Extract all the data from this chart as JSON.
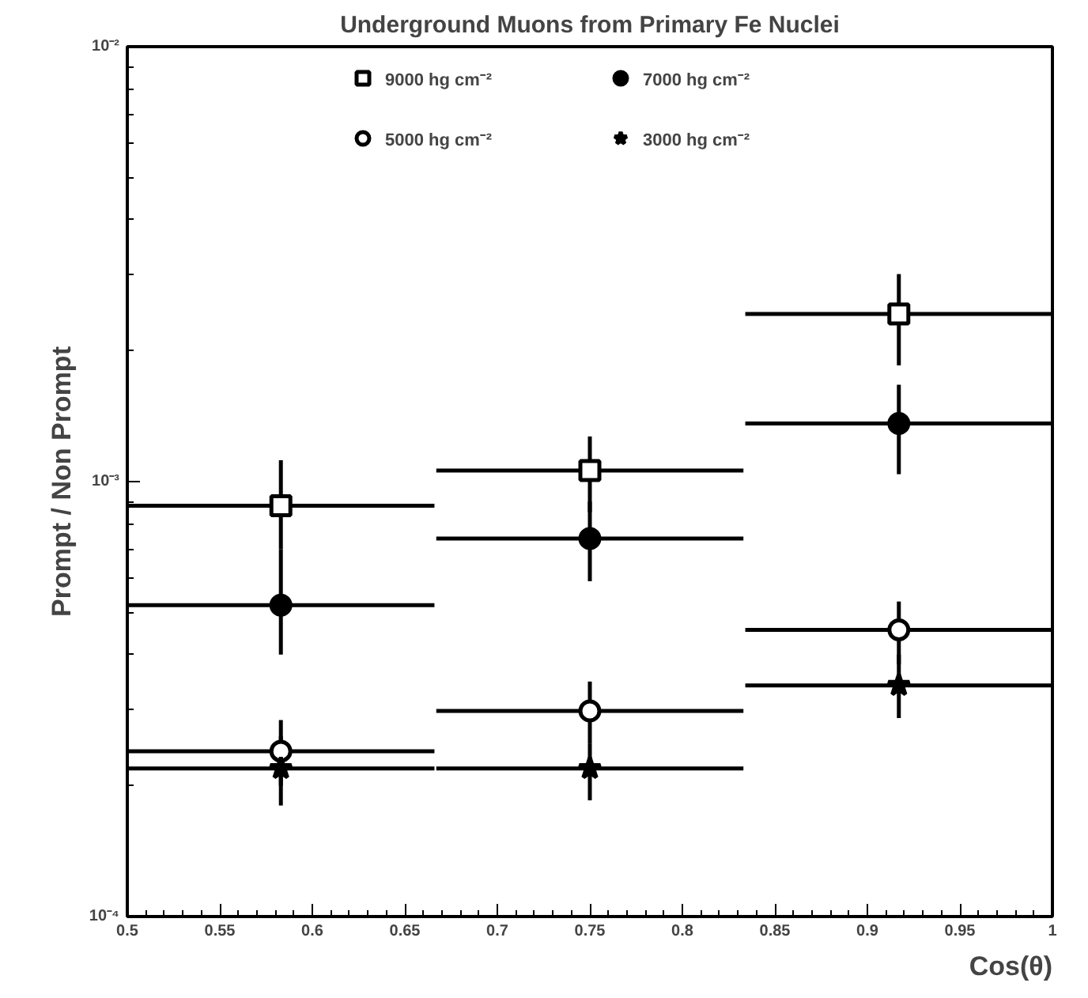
{
  "chart_data": {
    "type": "scatter",
    "title": "Underground Muons from Primary Fe Nuclei",
    "xlabel": "Cos(θ)",
    "ylabel": "Prompt / Non Prompt",
    "x": [
      0.583,
      0.75,
      0.917
    ],
    "series": [
      {
        "name": "9000 hg cm⁻²",
        "color": "#ffffff",
        "marker": "square",
        "values": [
          0.00088,
          0.00106,
          0.00243
        ],
        "errors": [
          [
            0.0007,
            0.00112
          ],
          [
            0.00085,
            0.00127
          ],
          [
            0.00185,
            0.003
          ]
        ],
        "xerrors": [
          0.083,
          0.083,
          0.083
        ]
      },
      {
        "name": "7000 hg cm⁻²",
        "color": "#000000",
        "marker": "circle",
        "values": [
          0.00052,
          0.00074,
          0.00136
        ],
        "errors": [
          [
            0.0004,
            0.0007
          ],
          [
            0.00059,
            0.0009
          ],
          [
            0.00104,
            0.00167
          ]
        ],
        "xerrors": [
          0.083,
          0.083,
          0.083
        ]
      },
      {
        "name": "5000 hg cm⁻²",
        "color": "#ffffff",
        "marker": "circle",
        "values": [
          0.00024,
          0.000297,
          0.000456
        ],
        "errors": [
          [
            0.0002,
            0.000283
          ],
          [
            0.00025,
            0.000347
          ],
          [
            0.00038,
            0.00053
          ]
        ],
        "xerrors": [
          0.083,
          0.083,
          0.083
        ]
      },
      {
        "name": "3000 hg cm⁻²",
        "color": "#000000",
        "marker": "star",
        "values": [
          0.000219,
          0.000219,
          0.00034
        ],
        "errors": [
          [
            0.00018,
            0.00026
          ],
          [
            0.000185,
            0.00025
          ],
          [
            0.000286,
            0.0004
          ]
        ],
        "xerrors": [
          0.083,
          0.083,
          0.083
        ]
      }
    ],
    "xlim": [
      0.5,
      1
    ],
    "ylim": [
      0.0001,
      0.01
    ],
    "xticks": [
      0.5,
      0.55,
      0.6,
      0.65,
      0.7,
      0.75,
      0.8,
      0.85,
      0.9,
      0.95,
      1
    ],
    "yticks": [
      {
        "value": 0.0001,
        "label": "10⁻⁴"
      },
      {
        "value": 0.001,
        "label": "10⁻³"
      },
      {
        "value": 0.01,
        "label": "10⁻²"
      }
    ],
    "log": "y",
    "grid": false,
    "legend": "top",
    "line_style": "solid"
  }
}
